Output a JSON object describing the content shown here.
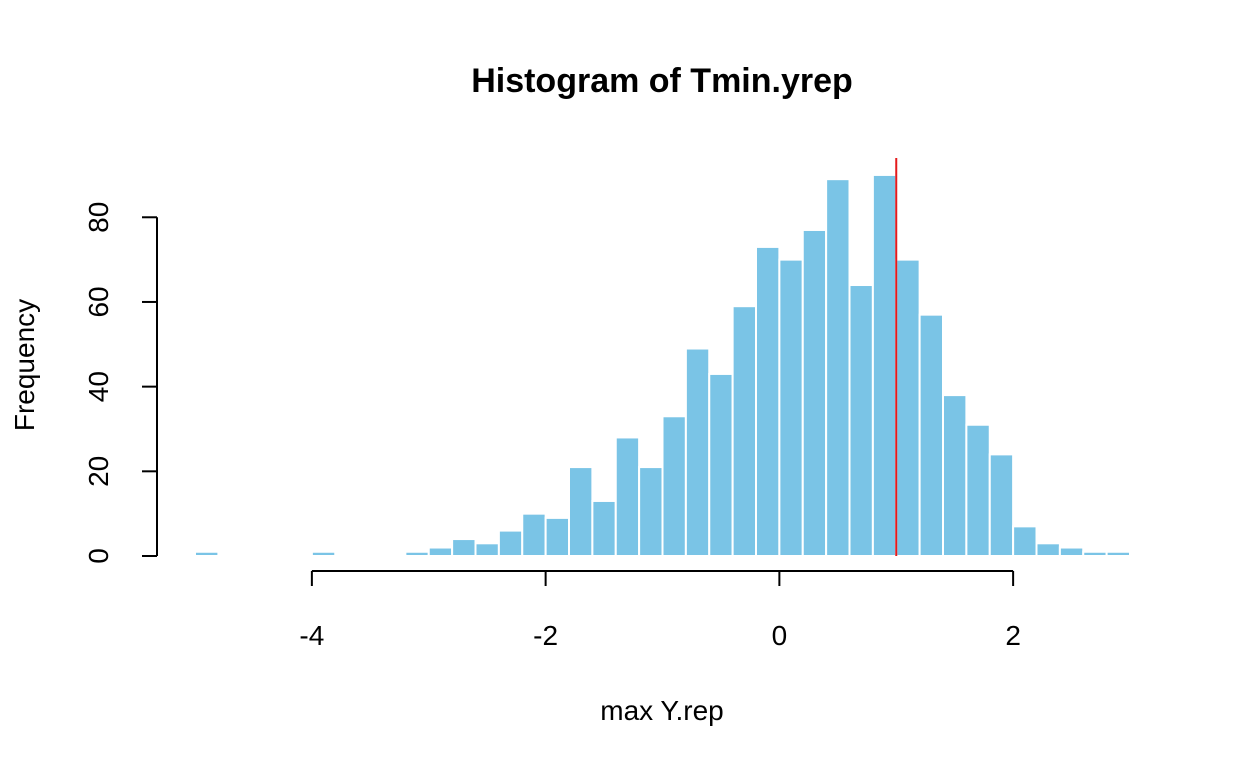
{
  "chart_data": {
    "type": "bar",
    "title": "Histogram of Tmin.yrep",
    "xlabel": "max Y.rep",
    "ylabel": "Frequency",
    "bin_width": 0.2,
    "bins": [
      {
        "x0": -5.0,
        "count": 1
      },
      {
        "x0": -4.0,
        "count": 1
      },
      {
        "x0": -3.2,
        "count": 1
      },
      {
        "x0": -3.0,
        "count": 2
      },
      {
        "x0": -2.8,
        "count": 4
      },
      {
        "x0": -2.6,
        "count": 3
      },
      {
        "x0": -2.4,
        "count": 6
      },
      {
        "x0": -2.2,
        "count": 10
      },
      {
        "x0": -2.0,
        "count": 9
      },
      {
        "x0": -1.8,
        "count": 21
      },
      {
        "x0": -1.6,
        "count": 13
      },
      {
        "x0": -1.4,
        "count": 28
      },
      {
        "x0": -1.2,
        "count": 21
      },
      {
        "x0": -1.0,
        "count": 33
      },
      {
        "x0": -0.8,
        "count": 49
      },
      {
        "x0": -0.6,
        "count": 43
      },
      {
        "x0": -0.4,
        "count": 59
      },
      {
        "x0": -0.2,
        "count": 73
      },
      {
        "x0": 0.0,
        "count": 70
      },
      {
        "x0": 0.2,
        "count": 77
      },
      {
        "x0": 0.4,
        "count": 89
      },
      {
        "x0": 0.6,
        "count": 64
      },
      {
        "x0": 0.8,
        "count": 90
      },
      {
        "x0": 1.0,
        "count": 70
      },
      {
        "x0": 1.2,
        "count": 57
      },
      {
        "x0": 1.4,
        "count": 38
      },
      {
        "x0": 1.6,
        "count": 31
      },
      {
        "x0": 1.8,
        "count": 24
      },
      {
        "x0": 2.0,
        "count": 7
      },
      {
        "x0": 2.2,
        "count": 3
      },
      {
        "x0": 2.4,
        "count": 2
      },
      {
        "x0": 2.6,
        "count": 1
      },
      {
        "x0": 2.8,
        "count": 1
      }
    ],
    "reference_line": {
      "x": 1.0,
      "color": "#e41a1c"
    },
    "xlim": [
      -5.0,
      3.0
    ],
    "ylim": [
      0,
      94
    ],
    "x_ticks": [
      "-4",
      "-2",
      "0",
      "2"
    ],
    "y_ticks": [
      "0",
      "20",
      "40",
      "60",
      "80"
    ],
    "bar_color": "#7ac4e6",
    "grid": false
  }
}
